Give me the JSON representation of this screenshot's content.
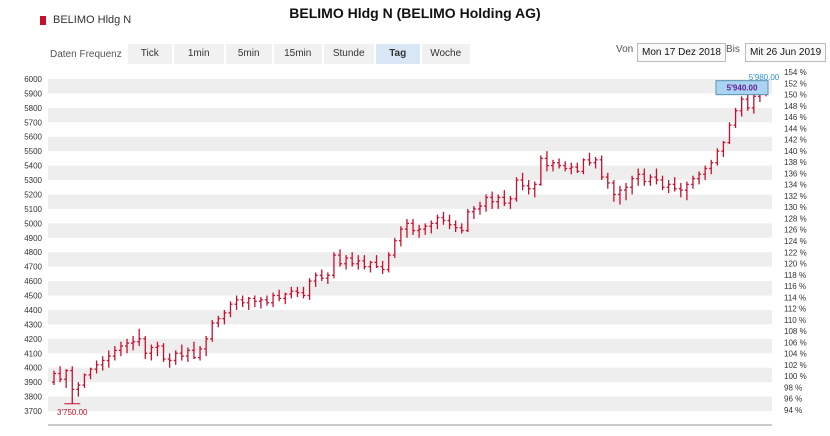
{
  "header": {
    "title": "BELIMO Hldg N (BELIMO Holding AG)",
    "legend_label": "BELIMO Hldg N",
    "legend_color": "#c8102e"
  },
  "toolbar": {
    "frequency_label": "Daten Frequenz",
    "tabs": [
      {
        "label": "Tick"
      },
      {
        "label": "1min"
      },
      {
        "label": "5min"
      },
      {
        "label": "15min"
      },
      {
        "label": "Stunde"
      },
      {
        "label": "Tag",
        "active": true
      },
      {
        "label": "Woche"
      }
    ]
  },
  "range": {
    "from_label": "Von",
    "from_value": "Mon 17 Dez 2018",
    "to_label": "Bis",
    "to_value": "Mit 26 Jun 2019"
  },
  "chart_data": {
    "type": "ohlc",
    "series_name": "BELIMO Hldg N",
    "color": "#c8102e",
    "ylim": [
      3700,
      6000
    ],
    "yticks": [
      "3700",
      "3800",
      "3900",
      "4000",
      "4100",
      "4200",
      "4300",
      "4400",
      "4500",
      "4600",
      "4700",
      "4800",
      "4900",
      "5000",
      "5100",
      "5200",
      "5300",
      "5400",
      "5500",
      "5600",
      "5700",
      "5800",
      "5900",
      "6000"
    ],
    "y2ticks": [
      "94 %",
      "96 %",
      "98 %",
      "100 %",
      "102 %",
      "104 %",
      "106 %",
      "108 %",
      "110 %",
      "112 %",
      "114 %",
      "116 %",
      "118 %",
      "120 %",
      "122 %",
      "124 %",
      "126 %",
      "128 %",
      "130 %",
      "132 %",
      "134 %",
      "136 %",
      "138 %",
      "140 %",
      "142 %",
      "144 %",
      "146 %",
      "148 %",
      "150 %",
      "152 %",
      "154 %"
    ],
    "min_label": "3'750.00",
    "max_label": "5'980.00",
    "last_label": "5'940.00",
    "bars": [
      [
        3900,
        3980,
        3880,
        3960
      ],
      [
        3960,
        4010,
        3900,
        3920
      ],
      [
        3920,
        3990,
        3860,
        3980
      ],
      [
        3980,
        4010,
        3750,
        3850
      ],
      [
        3850,
        3900,
        3800,
        3880
      ],
      [
        3880,
        3960,
        3860,
        3950
      ],
      [
        3950,
        4000,
        3920,
        3990
      ],
      [
        3990,
        4050,
        3960,
        4020
      ],
      [
        4020,
        4080,
        3980,
        4050
      ],
      [
        4050,
        4120,
        4000,
        4080
      ],
      [
        4080,
        4150,
        4050,
        4120
      ],
      [
        4120,
        4180,
        4080,
        4150
      ],
      [
        4150,
        4200,
        4100,
        4170
      ],
      [
        4170,
        4220,
        4120,
        4180
      ],
      [
        4180,
        4270,
        4150,
        4200
      ],
      [
        4200,
        4220,
        4060,
        4100
      ],
      [
        4100,
        4160,
        4050,
        4140
      ],
      [
        4140,
        4180,
        4080,
        4150
      ],
      [
        4150,
        4170,
        4040,
        4060
      ],
      [
        4060,
        4100,
        4000,
        4050
      ],
      [
        4050,
        4120,
        4020,
        4100
      ],
      [
        4100,
        4160,
        4050,
        4080
      ],
      [
        4080,
        4140,
        4040,
        4120
      ],
      [
        4120,
        4180,
        4060,
        4070
      ],
      [
        4070,
        4150,
        4050,
        4130
      ],
      [
        4130,
        4220,
        4080,
        4200
      ],
      [
        4200,
        4330,
        4180,
        4310
      ],
      [
        4310,
        4360,
        4280,
        4340
      ],
      [
        4340,
        4400,
        4300,
        4380
      ],
      [
        4380,
        4460,
        4350,
        4440
      ],
      [
        4440,
        4500,
        4400,
        4470
      ],
      [
        4470,
        4500,
        4420,
        4450
      ],
      [
        4450,
        4490,
        4400,
        4480
      ],
      [
        4480,
        4500,
        4420,
        4460
      ],
      [
        4460,
        4490,
        4410,
        4470
      ],
      [
        4470,
        4500,
        4430,
        4450
      ],
      [
        4450,
        4520,
        4420,
        4500
      ],
      [
        4500,
        4540,
        4460,
        4480
      ],
      [
        4480,
        4520,
        4440,
        4510
      ],
      [
        4510,
        4560,
        4480,
        4530
      ],
      [
        4530,
        4560,
        4490,
        4520
      ],
      [
        4520,
        4560,
        4480,
        4500
      ],
      [
        4500,
        4620,
        4470,
        4600
      ],
      [
        4600,
        4660,
        4560,
        4640
      ],
      [
        4640,
        4680,
        4600,
        4620
      ],
      [
        4620,
        4660,
        4580,
        4640
      ],
      [
        4640,
        4800,
        4620,
        4780
      ],
      [
        4780,
        4820,
        4700,
        4720
      ],
      [
        4720,
        4780,
        4680,
        4760
      ],
      [
        4760,
        4800,
        4700,
        4720
      ],
      [
        4720,
        4780,
        4680,
        4740
      ],
      [
        4740,
        4780,
        4680,
        4700
      ],
      [
        4700,
        4740,
        4660,
        4730
      ],
      [
        4730,
        4780,
        4690,
        4700
      ],
      [
        4700,
        4740,
        4650,
        4680
      ],
      [
        4680,
        4800,
        4660,
        4780
      ],
      [
        4780,
        4900,
        4760,
        4880
      ],
      [
        4880,
        4980,
        4840,
        4960
      ],
      [
        4960,
        5030,
        4900,
        5000
      ],
      [
        5000,
        5030,
        4920,
        4950
      ],
      [
        4950,
        4990,
        4900,
        4960
      ],
      [
        4960,
        5000,
        4920,
        4980
      ],
      [
        4980,
        5020,
        4930,
        5000
      ],
      [
        5000,
        5060,
        4960,
        5040
      ],
      [
        5040,
        5080,
        4990,
        5020
      ],
      [
        5020,
        5060,
        4960,
        4990
      ],
      [
        4990,
        5020,
        4940,
        4970
      ],
      [
        4970,
        5000,
        4930,
        4950
      ],
      [
        4950,
        5100,
        4940,
        5080
      ],
      [
        5080,
        5120,
        5030,
        5100
      ],
      [
        5100,
        5150,
        5060,
        5120
      ],
      [
        5120,
        5200,
        5080,
        5180
      ],
      [
        5180,
        5220,
        5100,
        5150
      ],
      [
        5150,
        5200,
        5100,
        5180
      ],
      [
        5180,
        5230,
        5120,
        5140
      ],
      [
        5140,
        5190,
        5100,
        5170
      ],
      [
        5170,
        5320,
        5150,
        5300
      ],
      [
        5300,
        5350,
        5230,
        5260
      ],
      [
        5260,
        5300,
        5200,
        5240
      ],
      [
        5240,
        5290,
        5180,
        5270
      ],
      [
        5270,
        5470,
        5260,
        5450
      ],
      [
        5450,
        5500,
        5360,
        5400
      ],
      [
        5400,
        5440,
        5360,
        5420
      ],
      [
        5420,
        5450,
        5380,
        5400
      ],
      [
        5400,
        5430,
        5360,
        5380
      ],
      [
        5380,
        5420,
        5340,
        5390
      ],
      [
        5390,
        5420,
        5350,
        5360
      ],
      [
        5360,
        5450,
        5340,
        5440
      ],
      [
        5440,
        5490,
        5400,
        5420
      ],
      [
        5420,
        5460,
        5380,
        5440
      ],
      [
        5440,
        5470,
        5300,
        5320
      ],
      [
        5320,
        5350,
        5240,
        5280
      ],
      [
        5280,
        5300,
        5150,
        5200
      ],
      [
        5200,
        5260,
        5130,
        5230
      ],
      [
        5230,
        5280,
        5160,
        5250
      ],
      [
        5250,
        5330,
        5200,
        5310
      ],
      [
        5310,
        5380,
        5260,
        5340
      ],
      [
        5340,
        5380,
        5260,
        5290
      ],
      [
        5290,
        5340,
        5260,
        5320
      ],
      [
        5320,
        5380,
        5270,
        5300
      ],
      [
        5300,
        5330,
        5230,
        5250
      ],
      [
        5250,
        5300,
        5210,
        5270
      ],
      [
        5270,
        5320,
        5220,
        5240
      ],
      [
        5240,
        5280,
        5180,
        5230
      ],
      [
        5230,
        5290,
        5160,
        5270
      ],
      [
        5270,
        5330,
        5240,
        5310
      ],
      [
        5310,
        5360,
        5270,
        5340
      ],
      [
        5340,
        5400,
        5300,
        5380
      ],
      [
        5380,
        5440,
        5340,
        5420
      ],
      [
        5420,
        5520,
        5400,
        5500
      ],
      [
        5500,
        5570,
        5460,
        5560
      ],
      [
        5560,
        5700,
        5550,
        5680
      ],
      [
        5680,
        5800,
        5660,
        5780
      ],
      [
        5780,
        5880,
        5740,
        5860
      ],
      [
        5860,
        5920,
        5780,
        5800
      ],
      [
        5800,
        5900,
        5760,
        5880
      ],
      [
        5880,
        5960,
        5840,
        5920
      ],
      [
        5920,
        5980,
        5880,
        5940
      ]
    ]
  }
}
